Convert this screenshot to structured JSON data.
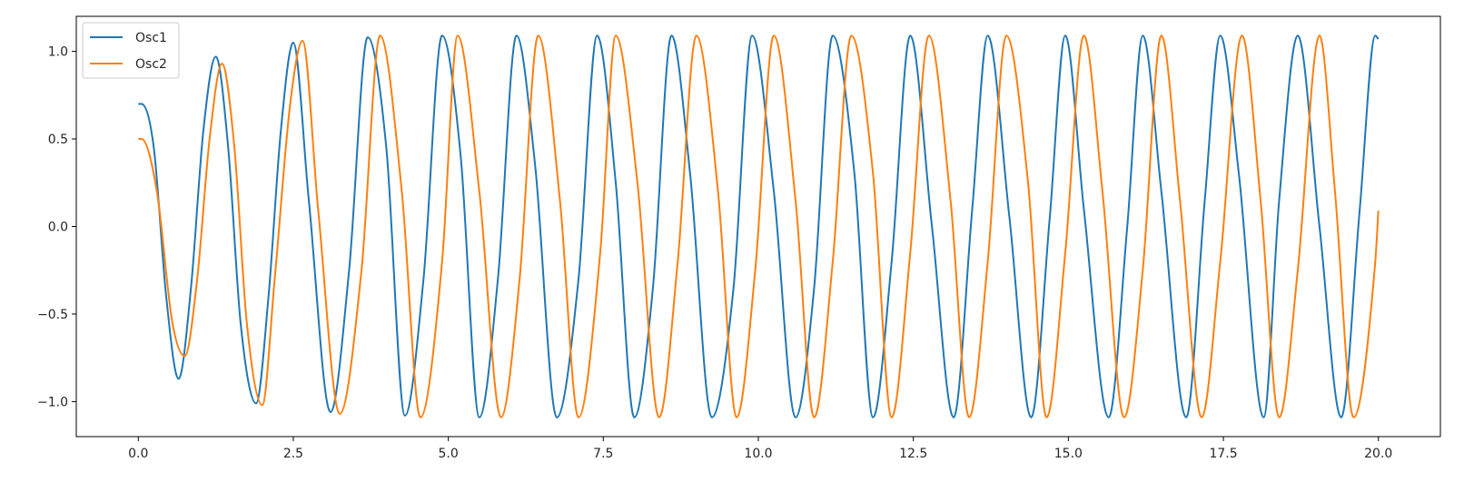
{
  "chart_data": {
    "type": "line",
    "title": "",
    "xlabel": "",
    "ylabel": "",
    "xlim": [
      -1.0,
      21.0
    ],
    "ylim": [
      -1.2,
      1.2
    ],
    "x_ticks": [
      0.0,
      2.5,
      5.0,
      7.5,
      10.0,
      12.5,
      15.0,
      17.5,
      20.0
    ],
    "x_tick_labels": [
      "0.0",
      "2.5",
      "5.0",
      "7.5",
      "10.0",
      "12.5",
      "15.0",
      "17.5",
      "20.0"
    ],
    "y_ticks": [
      -1.0,
      -0.5,
      0.0,
      0.5,
      1.0
    ],
    "y_tick_labels": [
      "−1.0",
      "−0.5",
      "0.0",
      "0.5",
      "1.0"
    ],
    "grid": false,
    "legend_position": "top-left",
    "legend": [
      "Osc1",
      "Osc2"
    ],
    "series": [
      {
        "name": "Osc1",
        "color": "#1f77b4",
        "x": [
          0.0,
          0.05,
          0.25,
          0.45,
          0.65,
          0.85,
          1.05,
          1.25,
          1.45,
          1.65,
          1.9,
          2.1,
          2.3,
          2.5,
          2.75,
          3.1,
          3.4,
          3.7,
          4.0,
          4.3,
          4.6,
          4.9,
          5.2,
          5.5,
          5.8,
          6.1,
          6.4,
          6.75,
          7.1,
          7.4,
          7.7,
          8.0,
          8.3,
          8.6,
          8.9,
          9.25,
          9.6,
          9.9,
          10.25,
          10.6,
          10.9,
          11.2,
          11.55,
          11.85,
          12.15,
          12.45,
          12.8,
          13.15,
          13.45,
          13.7,
          14.05,
          14.4,
          14.7,
          14.95,
          15.25,
          15.65,
          15.95,
          16.2,
          16.5,
          16.9,
          17.2,
          17.45,
          17.75,
          18.15,
          18.4,
          18.7,
          19.05,
          19.4,
          19.7,
          19.95,
          20.0
        ],
        "values": [
          0.7,
          0.7,
          0.45,
          -0.4,
          -0.87,
          -0.35,
          0.55,
          0.97,
          0.45,
          -0.55,
          -1.01,
          -0.4,
          0.55,
          1.05,
          0.15,
          -1.06,
          -0.25,
          1.08,
          0.45,
          -1.08,
          -0.3,
          1.09,
          0.4,
          -1.09,
          -0.3,
          1.09,
          0.35,
          -1.09,
          -0.3,
          1.09,
          0.25,
          -1.09,
          -0.35,
          1.09,
          0.3,
          -1.09,
          -0.35,
          1.09,
          0.2,
          -1.09,
          -0.35,
          1.09,
          0.3,
          -1.09,
          -0.2,
          1.09,
          0.0,
          -1.09,
          0.1,
          1.09,
          0.05,
          -1.09,
          0.05,
          1.09,
          0.1,
          -1.09,
          0.0,
          1.09,
          0.2,
          -1.09,
          0.15,
          1.09,
          0.3,
          -1.09,
          0.15,
          1.09,
          0.0,
          -1.09,
          0.1,
          1.09,
          1.07
        ]
      },
      {
        "name": "Osc2",
        "color": "#ff7f0e",
        "x": [
          0.0,
          0.05,
          0.3,
          0.55,
          0.75,
          0.95,
          1.15,
          1.35,
          1.55,
          1.75,
          2.0,
          2.2,
          2.45,
          2.65,
          2.9,
          3.25,
          3.6,
          3.9,
          4.25,
          4.55,
          4.9,
          5.15,
          5.5,
          5.85,
          6.15,
          6.45,
          6.8,
          7.1,
          7.45,
          7.7,
          8.05,
          8.4,
          8.7,
          9.0,
          9.35,
          9.65,
          9.95,
          10.25,
          10.6,
          10.9,
          11.2,
          11.5,
          11.85,
          12.15,
          12.45,
          12.75,
          13.1,
          13.4,
          13.7,
          14.0,
          14.35,
          14.65,
          14.95,
          15.25,
          15.55,
          15.9,
          16.2,
          16.5,
          16.8,
          17.15,
          17.45,
          17.8,
          18.1,
          18.4,
          18.7,
          19.05,
          19.3,
          19.6,
          19.95,
          20.0
        ],
        "values": [
          0.5,
          0.5,
          0.2,
          -0.55,
          -0.74,
          -0.3,
          0.5,
          0.93,
          0.45,
          -0.55,
          -1.02,
          -0.3,
          0.7,
          1.06,
          0.1,
          -1.07,
          -0.25,
          1.09,
          0.2,
          -1.09,
          -0.2,
          1.09,
          0.2,
          -1.09,
          -0.3,
          1.09,
          0.15,
          -1.09,
          -0.15,
          1.09,
          0.25,
          -1.09,
          -0.2,
          1.09,
          0.2,
          -1.09,
          -0.25,
          1.09,
          0.15,
          -1.09,
          -0.2,
          1.09,
          0.3,
          -1.09,
          -0.15,
          1.09,
          0.15,
          -1.09,
          -0.2,
          1.09,
          0.25,
          -1.09,
          -0.15,
          1.09,
          0.2,
          -1.09,
          -0.25,
          1.09,
          0.15,
          -1.09,
          -0.2,
          1.09,
          0.15,
          -1.09,
          -0.25,
          1.09,
          0.2,
          -1.09,
          -0.2,
          0.09
        ]
      }
    ]
  }
}
